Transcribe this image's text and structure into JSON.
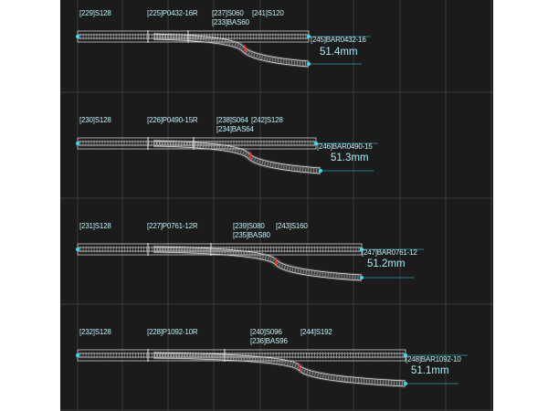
{
  "theme": {
    "background": "#1b1b1b",
    "grid": "#3a3a3a",
    "rail": "#e8e8e8",
    "tie": "#9a9a9a",
    "label": "#bfeff5",
    "measure": "#9ff0f8",
    "endpoint": "#30e0f0",
    "joint_marker": "#ff3030"
  },
  "layouts": [
    {
      "straight_start": "[229]S128",
      "turnout": "[225]P0432-16R",
      "straight_mid": "[237]S060",
      "straight_mid_2": "[241]S120",
      "bend": "[233]BAS60",
      "curve_end": "[245]BAR0432-16",
      "offset": "51.4mm"
    },
    {
      "straight_start": "[230]S128",
      "turnout": "[226]P0490-15R",
      "straight_mid": "[238]S064",
      "straight_mid_2": "[242]S128",
      "bend": "[234]BAS64",
      "curve_end": "[246]BAR0490-15",
      "offset": "51.3mm"
    },
    {
      "straight_start": "[231]S128",
      "turnout": "[227]P0761-12R",
      "straight_mid": "[239]S080",
      "straight_mid_2": "[243]S160",
      "bend": "[235]BAS80",
      "curve_end": "[247]BAR0761-12",
      "offset": "51.2mm"
    },
    {
      "straight_start": "[232]S128",
      "turnout": "[228]P1092-10R",
      "straight_mid": "[240]S096",
      "straight_mid_2": "[244]S192",
      "bend": "[236]BAS96",
      "curve_end": "[248]BAR1092-10",
      "offset": "51.1mm"
    }
  ]
}
